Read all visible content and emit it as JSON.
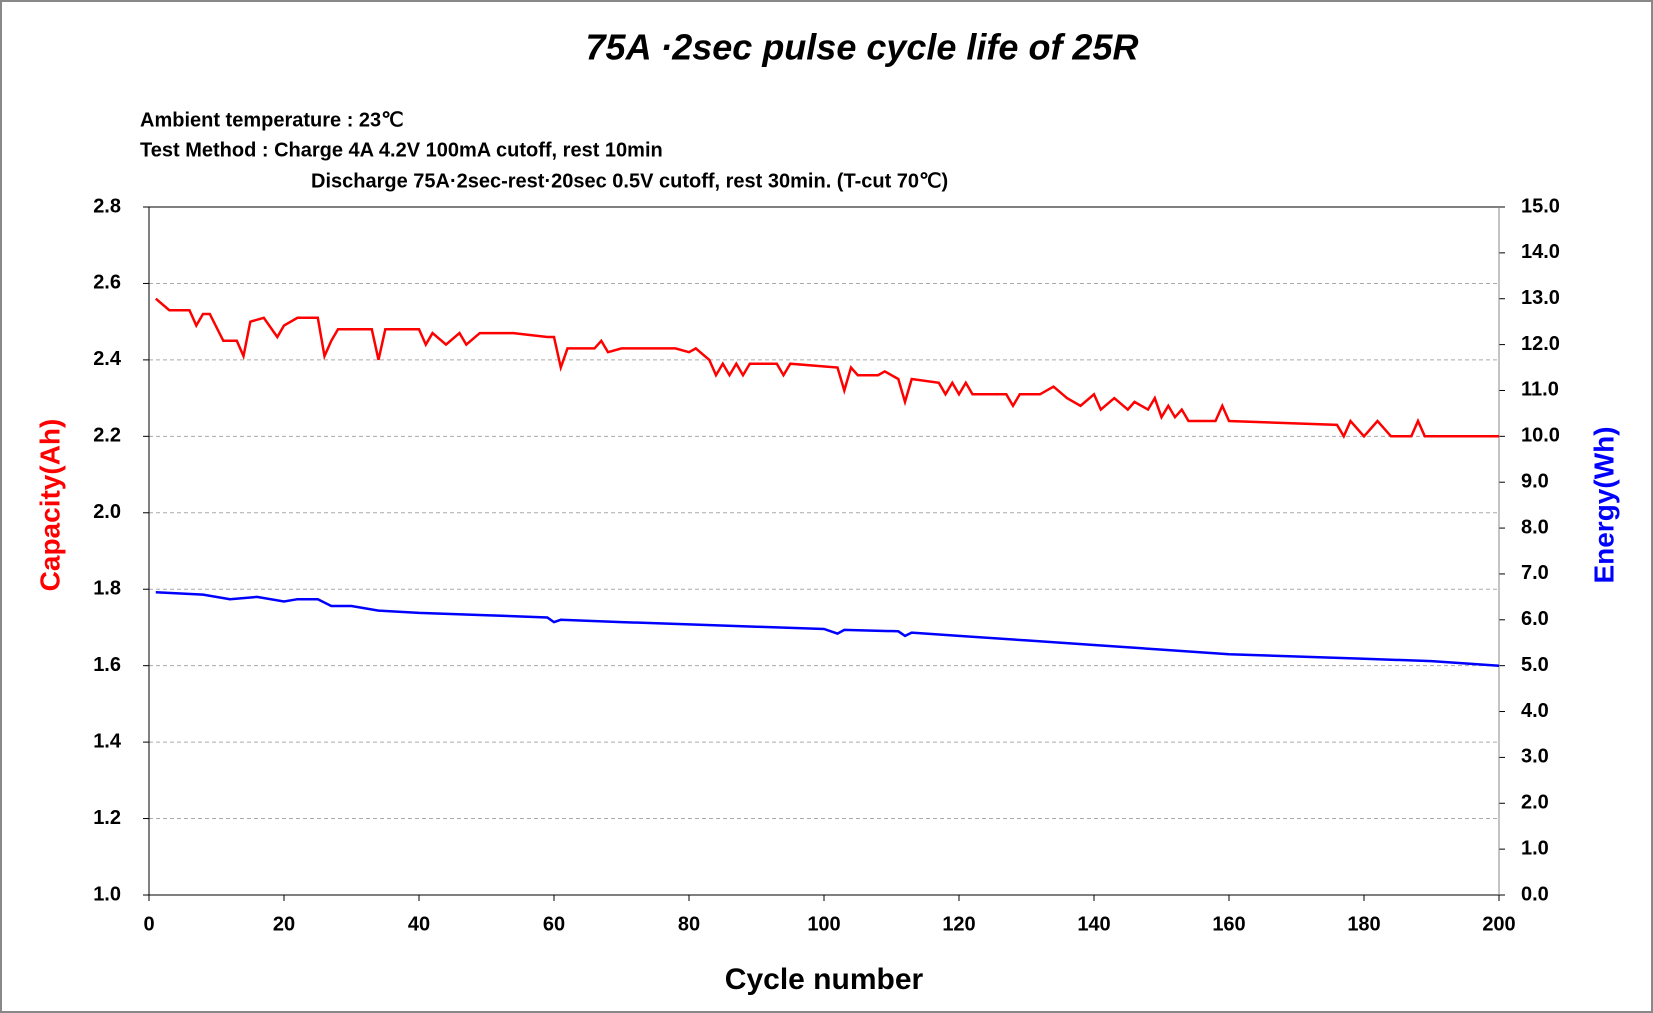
{
  "chart_data": {
    "type": "line",
    "title": "75A ·2sec pulse cycle life of 25R",
    "annotations": [
      "Ambient temperature : 23℃",
      "Test Method : Charge 4A 4.2V 100mA cutoff, rest 10min",
      "Discharge 75A·2sec-rest·20sec 0.5V cutoff, rest 30min.  (T-cut 70℃)"
    ],
    "xlabel": "Cycle number",
    "ylabel": "Capacity(Ah)",
    "y2label": "Energy(Wh)",
    "xlim": [
      0,
      200
    ],
    "xticks": [
      0,
      20,
      40,
      60,
      80,
      100,
      120,
      140,
      160,
      180,
      200
    ],
    "ylim": [
      1.0,
      2.8
    ],
    "yticks": [
      {
        "value": 1.0,
        "label": "1.0"
      },
      1.2,
      1.4,
      1.6,
      1.8,
      {
        "value": 2.0,
        "label": "2.0"
      },
      2.2,
      2.4,
      2.6,
      2.8
    ],
    "y2lim": [
      0.0,
      15.0
    ],
    "y2ticks": [
      {
        "value": 0,
        "label": "0.0"
      },
      {
        "value": 1,
        "label": "1.0"
      },
      {
        "value": 2,
        "label": "2.0"
      },
      {
        "value": 3,
        "label": "3.0"
      },
      {
        "value": 4,
        "label": "4.0"
      },
      {
        "value": 5,
        "label": "5.0"
      },
      {
        "value": 6,
        "label": "6.0"
      },
      {
        "value": 7,
        "label": "7.0"
      },
      {
        "value": 8,
        "label": "8.0"
      },
      {
        "value": 9,
        "label": "9.0"
      },
      {
        "value": 10,
        "label": "10.0"
      },
      {
        "value": 11,
        "label": "11.0"
      },
      {
        "value": 12,
        "label": "12.0"
      },
      {
        "value": 13,
        "label": "13.0"
      },
      {
        "value": 14,
        "label": "14.0"
      },
      {
        "value": 15,
        "label": "15.0"
      }
    ],
    "grid": true,
    "series": [
      {
        "color": "#ff0000",
        "axis": "y",
        "x": [
          1,
          3,
          6,
          7,
          8,
          9,
          11,
          13,
          14,
          15,
          17,
          19,
          20,
          22,
          25,
          26,
          27,
          28,
          33,
          34,
          35,
          40,
          41,
          42,
          44,
          46,
          47,
          49,
          54,
          59,
          60,
          61,
          62,
          66,
          67,
          68,
          70,
          78,
          80,
          81,
          83,
          84,
          85,
          86,
          87,
          88,
          89,
          93,
          94,
          95,
          102,
          103,
          104,
          105,
          108,
          109,
          111,
          112,
          113,
          117,
          118,
          119,
          120,
          121,
          122,
          127,
          128,
          129,
          132,
          134,
          136,
          138,
          140,
          141,
          143,
          145,
          146,
          148,
          149,
          150,
          151,
          152,
          153,
          154,
          158,
          159,
          160,
          176,
          177,
          178,
          180,
          182,
          184,
          187,
          188,
          189,
          200
        ],
        "values": [
          2.56,
          2.53,
          2.53,
          2.49,
          2.52,
          2.52,
          2.45,
          2.45,
          2.41,
          2.5,
          2.51,
          2.46,
          2.49,
          2.51,
          2.51,
          2.41,
          2.45,
          2.48,
          2.48,
          2.4,
          2.48,
          2.48,
          2.44,
          2.47,
          2.44,
          2.47,
          2.44,
          2.47,
          2.47,
          2.46,
          2.46,
          2.38,
          2.43,
          2.43,
          2.45,
          2.42,
          2.43,
          2.43,
          2.42,
          2.43,
          2.4,
          2.36,
          2.39,
          2.36,
          2.39,
          2.36,
          2.39,
          2.39,
          2.36,
          2.39,
          2.38,
          2.32,
          2.38,
          2.36,
          2.36,
          2.37,
          2.35,
          2.29,
          2.35,
          2.34,
          2.31,
          2.34,
          2.31,
          2.34,
          2.31,
          2.31,
          2.28,
          2.31,
          2.31,
          2.33,
          2.3,
          2.28,
          2.31,
          2.27,
          2.3,
          2.27,
          2.29,
          2.27,
          2.3,
          2.25,
          2.28,
          2.25,
          2.27,
          2.24,
          2.24,
          2.28,
          2.24,
          2.23,
          2.2,
          2.24,
          2.2,
          2.24,
          2.2,
          2.2,
          2.24,
          2.2,
          2.2
        ]
      },
      {
        "color": "#0000ff",
        "axis": "y2",
        "x": [
          1,
          8,
          12,
          16,
          20,
          22,
          25,
          27,
          30,
          34,
          40,
          50,
          59,
          60,
          61,
          70,
          80,
          90,
          100,
          102,
          103,
          111,
          112,
          113,
          120,
          130,
          140,
          150,
          160,
          170,
          180,
          190,
          200
        ],
        "values": [
          6.6,
          6.55,
          6.45,
          6.5,
          6.4,
          6.45,
          6.45,
          6.3,
          6.3,
          6.2,
          6.15,
          6.1,
          6.05,
          5.95,
          6.0,
          5.95,
          5.9,
          5.85,
          5.8,
          5.7,
          5.78,
          5.75,
          5.65,
          5.72,
          5.65,
          5.55,
          5.45,
          5.35,
          5.25,
          5.2,
          5.15,
          5.1,
          5.0
        ]
      }
    ]
  }
}
